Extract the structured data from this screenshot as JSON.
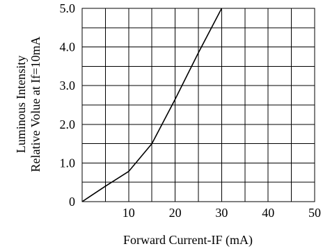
{
  "chart_data": {
    "type": "line",
    "title": "",
    "xlabel": "Forward Current-IF (mA)",
    "ylabel_line1": "Luminous Intensity",
    "ylabel_line2": "Relative Volue at If=10mA",
    "xlim": [
      0,
      50
    ],
    "ylim": [
      0,
      5
    ],
    "x_ticks": [
      10,
      20,
      30,
      40,
      50
    ],
    "x_tick_labels": [
      "10",
      "20",
      "30",
      "40",
      "50"
    ],
    "y_ticks": [
      0,
      1,
      2,
      3,
      4,
      5
    ],
    "y_tick_labels": [
      "0",
      "1.0",
      "2.0",
      "3.0",
      "4.0",
      "5.0"
    ],
    "grid": true,
    "series": [
      {
        "x": [
          0,
          5,
          10,
          15,
          20,
          25,
          30
        ],
        "y": [
          0,
          0.4,
          0.78,
          1.5,
          2.65,
          3.85,
          5.0
        ]
      }
    ]
  }
}
